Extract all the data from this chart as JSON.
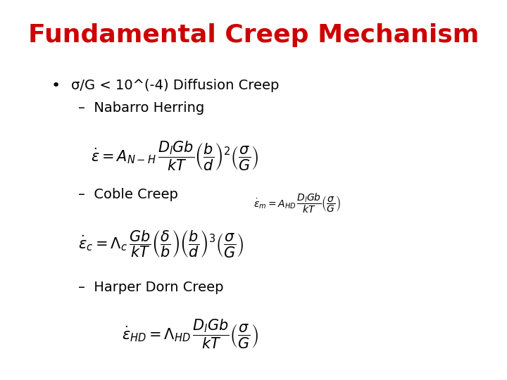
{
  "title": "Fundamental Creep Mechanism",
  "title_color": "#CC0000",
  "title_fontsize": 26,
  "title_fontstyle": "bold",
  "bg_color": "#FFFFFF",
  "bullet": "•",
  "bullet_text": "σ/G < 10^(-4) Diffusion Creep",
  "sub1_label": "Nabarro Herring",
  "sub2_label": "Coble Creep",
  "sub3_label": "Harper Dorn Creep",
  "eq1": "$\\dot{\\varepsilon} = A_{N-H}\\,\\dfrac{D_l Gb}{kT}\\left(\\dfrac{b}{d}\\right)^2\\left(\\dfrac{\\sigma}{G}\\right)$",
  "eq1_small": "$\\dot{\\varepsilon}_m = A_{HD}\\,\\dfrac{D_l Gb}{kT}\\left(\\dfrac{\\sigma}{G}\\right)$",
  "eq2": "$\\dot{\\varepsilon}_c = \\Lambda_c\\,\\dfrac{Gb}{kT}\\left(\\dfrac{\\delta}{b}\\right)\\left(\\dfrac{b}{d}\\right)^3\\left(\\dfrac{\\sigma}{G}\\right)$",
  "eq3": "$\\dot{\\varepsilon}_{HD} = \\Lambda_{HD}\\,\\dfrac{D_l Gb}{kT}\\left(\\dfrac{\\sigma}{G}\\right)$",
  "text_fontsize": 14,
  "eq_fontsize": 15,
  "eq_small_fontsize": 10
}
